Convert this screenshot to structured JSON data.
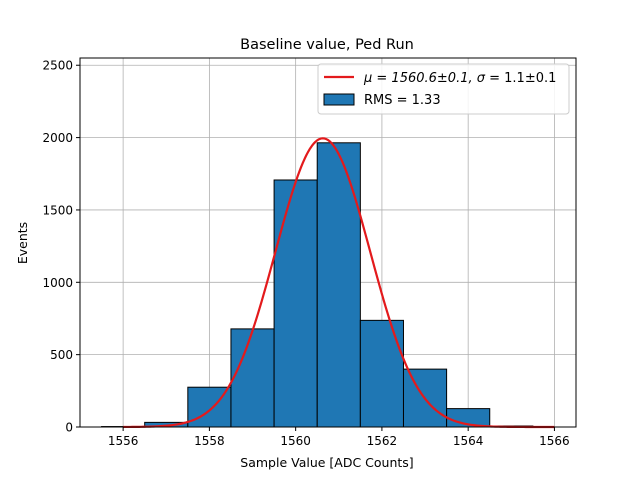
{
  "chart_data": {
    "type": "bar",
    "title": "Baseline value, Ped Run",
    "xlabel": "Sample Value [ADC Counts]",
    "ylabel": "Events",
    "xlim": [
      1555,
      1566.5
    ],
    "ylim": [
      0,
      2550
    ],
    "grid": true,
    "legend_position": "top-right",
    "xticks": [
      1556,
      1558,
      1560,
      1562,
      1564,
      1566
    ],
    "yticks": [
      0,
      500,
      1000,
      1500,
      2000,
      2500
    ],
    "histogram": {
      "name": "RMS = 1.33",
      "bin_edges": [
        1555.5,
        1556.5,
        1557.5,
        1558.5,
        1559.5,
        1560.5,
        1561.5,
        1562.5,
        1563.5,
        1564.5,
        1565.5
      ],
      "values": [
        3,
        32,
        275,
        678,
        1707,
        1964,
        737,
        400,
        127,
        7
      ],
      "color": "#1f77b4",
      "edge_color": "#000000"
    },
    "fit": {
      "name_prefix": "μ = 1560.6±0.1, ",
      "name_sigma": "σ",
      "name_suffix": " = 1.1±0.1",
      "mu": 1560.63,
      "sigma": 1.1,
      "amplitude": 1995,
      "x_range": [
        1556,
        1566
      ],
      "color": "#e31a1c"
    }
  }
}
